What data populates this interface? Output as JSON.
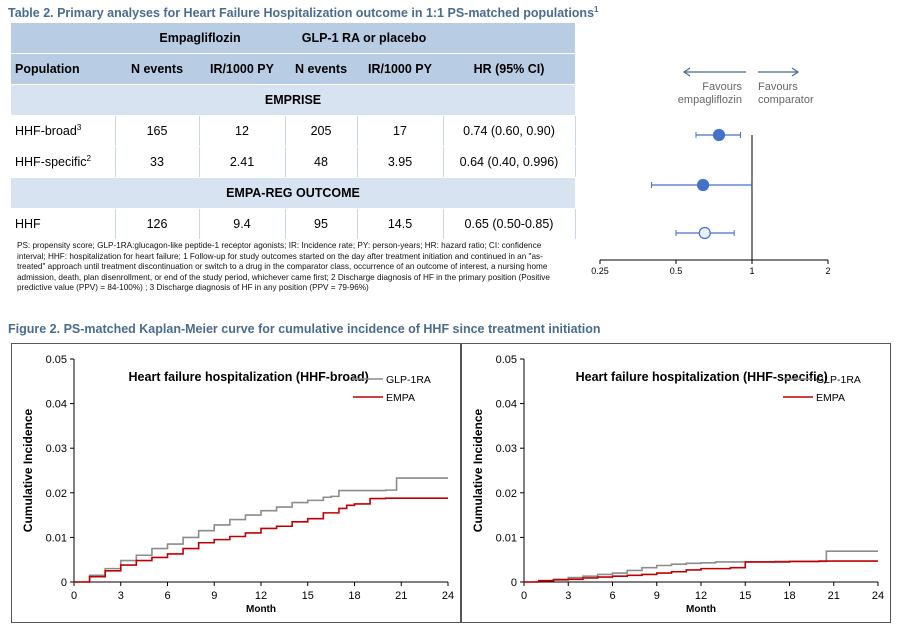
{
  "table": {
    "title": "Table 2. Primary analyses for Heart Failure Hospitalization outcome in 1:1 PS-matched populations",
    "title_sup": "1",
    "group_headers": [
      "Empagliflozin",
      "GLP-1 RA or placebo"
    ],
    "columns": [
      "Population",
      "N events",
      "IR/1000 PY",
      "N events",
      "IR/1000 PY",
      "HR (95% CI)"
    ],
    "sections": [
      {
        "name": "EMPRISE",
        "rows": [
          {
            "pop": "HHF-broad",
            "sup": "3",
            "e_events": "165",
            "e_ir": "12",
            "g_events": "205",
            "g_ir": "17",
            "hr": "0.74 (0.60, 0.90)"
          },
          {
            "pop": "HHF-specific",
            "sup": "2",
            "e_events": "33",
            "e_ir": "2.41",
            "g_events": "48",
            "g_ir": "3.95",
            "hr": "0.64 (0.40, 0.996)"
          }
        ]
      },
      {
        "name": "EMPA-REG OUTCOME",
        "rows": [
          {
            "pop": "HHF",
            "sup": "",
            "e_events": "126",
            "e_ir": "9.4",
            "g_events": "95",
            "g_ir": "14.5",
            "hr": "0.65 (0.50-0.85)"
          }
        ]
      }
    ],
    "footnote": "PS: propensity score; GLP-1RA:glucagon-like peptide-1 receptor agonists; IR: Incidence rate; PY: person-years; HR: hazard ratio; CI: confidence interval; HHF: hospitalization for heart failure; 1 Follow-up for study outcomes started on the day after treatment initiation and continued in an \"as-treated\" approach until treatment discontinuation or switch to a drug in the comparator class, occurrence of an outcome of interest, a nursing home admission, death, plan disenrollment, or end of the study period, whichever came first; 2 Discharge diagnosis of HF in the primary position (Positive predictive value (PPV) = 84-100%) ; 3 Discharge diagnosis of HF in any position (PPV = 79-96%)"
  },
  "forest": {
    "favours_left": [
      "Favours",
      "empagliflozin"
    ],
    "favours_right": [
      "Favours",
      "comparator"
    ],
    "ticks": [
      0.25,
      0.5,
      1,
      2
    ],
    "tick_labels": [
      "0.25",
      "0.5",
      "1",
      "2"
    ],
    "points": [
      {
        "hr": 0.74,
        "lo": 0.6,
        "hi": 0.9,
        "filled": true
      },
      {
        "hr": 0.64,
        "lo": 0.4,
        "hi": 0.996,
        "filled": true
      },
      {
        "hr": 0.65,
        "lo": 0.5,
        "hi": 0.85,
        "filled": false
      }
    ],
    "colors": {
      "point": "#4472c4",
      "line": "#4472c4",
      "ref": "#000000"
    }
  },
  "figure_title": "Figure 2. PS-matched Kaplan-Meier curve for cumulative incidence of HHF since treatment initiation",
  "chart_data": [
    {
      "type": "line",
      "title": "Heart failure hospitalization (HHF-broad)",
      "xlabel": "Month",
      "ylabel": "Cumulative Incidence",
      "xlim": [
        0,
        24
      ],
      "ylim": [
        0,
        0.05
      ],
      "xticks": [
        0,
        3,
        6,
        9,
        12,
        15,
        18,
        21,
        24
      ],
      "yticks": [
        0,
        0.01,
        0.02,
        0.03,
        0.04,
        0.05
      ],
      "ytick_labels": [
        "0",
        "0.01",
        "0.02",
        "0.03",
        "0.04",
        "0.05"
      ],
      "legend": "top-right",
      "series": [
        {
          "name": "GLP-1RA",
          "color": "#8c8c8c",
          "x": [
            0,
            1,
            2,
            3,
            4,
            5,
            6,
            7,
            8,
            9,
            10,
            11,
            12,
            13,
            14,
            15,
            16,
            16.5,
            17,
            18,
            19,
            20,
            20.7,
            21,
            22,
            23,
            24
          ],
          "y": [
            0,
            0.0015,
            0.003,
            0.0048,
            0.006,
            0.0075,
            0.0085,
            0.01,
            0.0115,
            0.0128,
            0.014,
            0.015,
            0.016,
            0.0168,
            0.0178,
            0.0183,
            0.019,
            0.0192,
            0.0205,
            0.0205,
            0.0205,
            0.0206,
            0.0233,
            0.0233,
            0.0233,
            0.0233,
            0.0233
          ]
        },
        {
          "name": "EMPA",
          "color": "#c00000",
          "x": [
            0,
            1,
            2,
            3,
            4,
            5,
            6,
            7,
            8,
            9,
            10,
            11,
            12,
            13,
            14,
            15,
            16,
            17,
            17.5,
            18,
            19,
            20,
            21,
            22,
            23,
            24
          ],
          "y": [
            0,
            0.0012,
            0.0025,
            0.0038,
            0.0048,
            0.0055,
            0.0063,
            0.0075,
            0.0088,
            0.0095,
            0.0102,
            0.011,
            0.012,
            0.0125,
            0.0135,
            0.0142,
            0.0155,
            0.0165,
            0.0172,
            0.0175,
            0.0187,
            0.0188,
            0.0188,
            0.0188,
            0.0188,
            0.0188
          ]
        }
      ]
    },
    {
      "type": "line",
      "title": "Heart failure hospitalization (HHF-specific)",
      "xlabel": "Month",
      "ylabel": "Cumulative Incidence",
      "xlim": [
        0,
        24
      ],
      "ylim": [
        0,
        0.05
      ],
      "xticks": [
        0,
        3,
        6,
        9,
        12,
        15,
        18,
        21,
        24
      ],
      "yticks": [
        0,
        0.01,
        0.02,
        0.03,
        0.04,
        0.05
      ],
      "ytick_labels": [
        "0",
        "0.01",
        "0.02",
        "0.03",
        "0.04",
        "0.05"
      ],
      "legend": "top-right",
      "series": [
        {
          "name": "GLP-1RA",
          "color": "#8c8c8c",
          "x": [
            0,
            1,
            2,
            3,
            4,
            5,
            6,
            7,
            8,
            9,
            10,
            11,
            12,
            13,
            14,
            15,
            16,
            17,
            18,
            19,
            20,
            20.5,
            21,
            22,
            23,
            24
          ],
          "y": [
            0,
            0.0003,
            0.0006,
            0.001,
            0.0013,
            0.0017,
            0.002,
            0.0026,
            0.0032,
            0.0037,
            0.004,
            0.0042,
            0.0043,
            0.0045,
            0.0045,
            0.0045,
            0.0045,
            0.0046,
            0.0046,
            0.0046,
            0.0046,
            0.0069,
            0.0069,
            0.0069,
            0.0069,
            0.0069
          ]
        },
        {
          "name": "EMPA",
          "color": "#c00000",
          "x": [
            0,
            1,
            2,
            3,
            4,
            5,
            6,
            7,
            8,
            9,
            10,
            11,
            12,
            13,
            14,
            15,
            16,
            17,
            18,
            19,
            20,
            21,
            22,
            23,
            24
          ],
          "y": [
            0,
            0.0003,
            0.0005,
            0.0006,
            0.0009,
            0.0011,
            0.0013,
            0.0015,
            0.0017,
            0.002,
            0.0023,
            0.0027,
            0.003,
            0.003,
            0.0032,
            0.0045,
            0.0045,
            0.0045,
            0.0046,
            0.0046,
            0.0047,
            0.0047,
            0.0047,
            0.0047,
            0.0047
          ]
        }
      ]
    }
  ]
}
